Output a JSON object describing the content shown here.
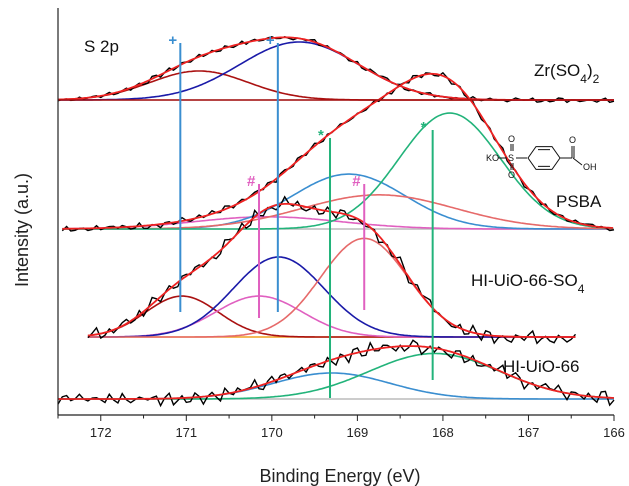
{
  "chart_data": {
    "type": "line",
    "title": "",
    "panel_label": "S 2p",
    "xlabel": "Binding Energy (eV)",
    "ylabel": "Intensity (a.u.)",
    "xlim": [
      172.5,
      166
    ],
    "x_reversed": true,
    "x_ticks": [
      172,
      171,
      170,
      169,
      168,
      167,
      166
    ],
    "grid": false,
    "colors": {
      "raw": "#000000",
      "envelope": "#ee2222",
      "peak_high": "#aa1111",
      "peak_main": "#1a1aa8",
      "pair_fit": "#e66a6a",
      "sulfonate_low": "#3a8ed0",
      "sulfonate_high": "#22b37a",
      "hash_mark": "#e060c0",
      "background": "#bbbbbb",
      "baseline_orange": "#f0a020"
    },
    "spectra": [
      {
        "name": "Zr(SO4)2",
        "label_main": "Zr(SO",
        "label_sub1": "4",
        "label_after": ")",
        "label_sub2": "2",
        "baseline": 0,
        "components": [
          {
            "role": "peak_high",
            "center": 170.85,
            "fwhm": 1.35,
            "height": 0.25
          },
          {
            "role": "peak_main",
            "center": 169.68,
            "fwhm": 1.65,
            "height": 0.5
          }
        ]
      },
      {
        "name": "PSBA",
        "label_main": "PSBA",
        "baseline": 0,
        "components": [
          {
            "role": "hash_mark",
            "center": 170.05,
            "fwhm": 2.0,
            "height": 0.1
          },
          {
            "role": "sulfonate_low",
            "center": 169.1,
            "fwhm": 1.55,
            "height": 0.45
          },
          {
            "role": "pair_fit",
            "center": 168.75,
            "fwhm": 2.1,
            "height": 0.28
          },
          {
            "role": "sulfonate_high",
            "center": 167.92,
            "fwhm": 1.4,
            "height": 0.95
          }
        ]
      },
      {
        "name": "HI-UiO-66-SO4",
        "label_main": "HI-UiO-66-SO",
        "label_sub1": "4",
        "baseline": 0,
        "components": [
          {
            "role": "peak_high",
            "center": 171.05,
            "fwhm": 1.0,
            "height": 0.22
          },
          {
            "role": "hash_mark",
            "center": 170.15,
            "fwhm": 1.2,
            "height": 0.22
          },
          {
            "role": "peak_main",
            "center": 169.92,
            "fwhm": 1.25,
            "height": 0.43
          },
          {
            "role": "pair_fit",
            "center": 168.92,
            "fwhm": 1.2,
            "height": 0.53
          }
        ]
      },
      {
        "name": "HI-UiO-66",
        "label_main": "HI-UiO-66",
        "baseline": 0,
        "components": [
          {
            "role": "sulfonate_low",
            "center": 169.3,
            "fwhm": 1.6,
            "height": 0.2
          },
          {
            "role": "sulfonate_high",
            "center": 168.1,
            "fwhm": 1.8,
            "height": 0.35
          }
        ]
      }
    ],
    "reference_lines": [
      {
        "x": 171.07,
        "marker": "+",
        "role": "sulfonate_low"
      },
      {
        "x": 169.93,
        "marker": "+",
        "role": "sulfonate_low"
      },
      {
        "x": 170.15,
        "marker": "#",
        "role": "hash_mark"
      },
      {
        "x": 168.92,
        "marker": "#",
        "role": "hash_mark"
      },
      {
        "x": 169.32,
        "marker": "*",
        "role": "sulfonate_high"
      },
      {
        "x": 168.12,
        "marker": "*",
        "role": "sulfonate_high"
      }
    ],
    "inset_molecule": {
      "name": "4-sulfobenzoic acid potassium salt",
      "labels": [
        "KO",
        "S",
        "O",
        "O",
        "O",
        "OH"
      ]
    }
  }
}
